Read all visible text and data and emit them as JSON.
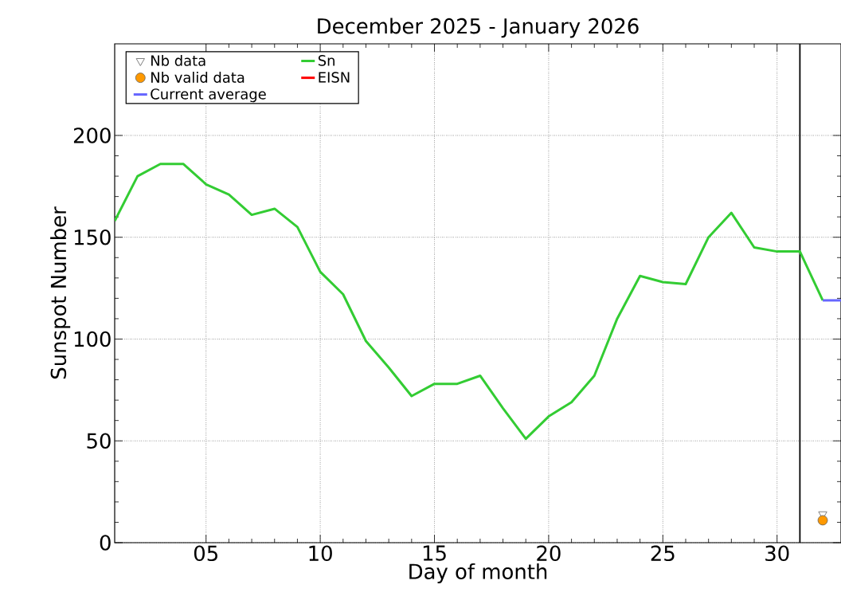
{
  "chart_data": {
    "type": "line",
    "title": "December 2025 - January 2026",
    "xlabel": "Day of month",
    "ylabel": "Sunspot Number",
    "xlim": [
      1,
      32.8
    ],
    "ylim": [
      0,
      245
    ],
    "xticks": [
      {
        "value": 5,
        "label": "05"
      },
      10,
      15,
      20,
      25,
      30
    ],
    "yticks": [
      0,
      50,
      100,
      150,
      200
    ],
    "grid": true,
    "legend": "top left",
    "line_style": "solid",
    "ref_lines": [
      {
        "axis": "x",
        "value": 31,
        "color": "#000000"
      }
    ],
    "series": [
      {
        "name": "Nb data",
        "type": "scatter",
        "marker": "triangle",
        "color": "#808080",
        "x": [
          32
        ],
        "values": [
          14
        ]
      },
      {
        "name": "Sn",
        "marker": "none",
        "color": "#33cc33",
        "x": [
          1,
          2,
          3,
          4,
          5,
          6,
          7,
          8,
          9,
          10,
          11,
          12,
          13,
          14,
          15,
          16,
          17,
          18,
          19,
          20,
          21,
          22,
          23,
          24,
          25,
          26,
          27,
          28,
          29,
          30,
          31,
          32
        ],
        "values": [
          158,
          180,
          186,
          186,
          176,
          171,
          161,
          164,
          155,
          133,
          122,
          99,
          86,
          72,
          78,
          78,
          82,
          66,
          51,
          62,
          69,
          82,
          110,
          131,
          128,
          127,
          150,
          162,
          145,
          143,
          143,
          119
        ]
      },
      {
        "name": "Nb valid data",
        "type": "scatter",
        "marker": "circle",
        "color": "#ff9900",
        "x": [
          32
        ],
        "values": [
          11
        ]
      },
      {
        "name": "EISN",
        "type": "line",
        "marker": "none",
        "color": "#ff0000"
      },
      {
        "name": "Current average",
        "type": "line",
        "marker": "none",
        "color": "#6666ff",
        "x": [
          32,
          32.8
        ],
        "values": [
          119,
          119
        ]
      }
    ]
  }
}
